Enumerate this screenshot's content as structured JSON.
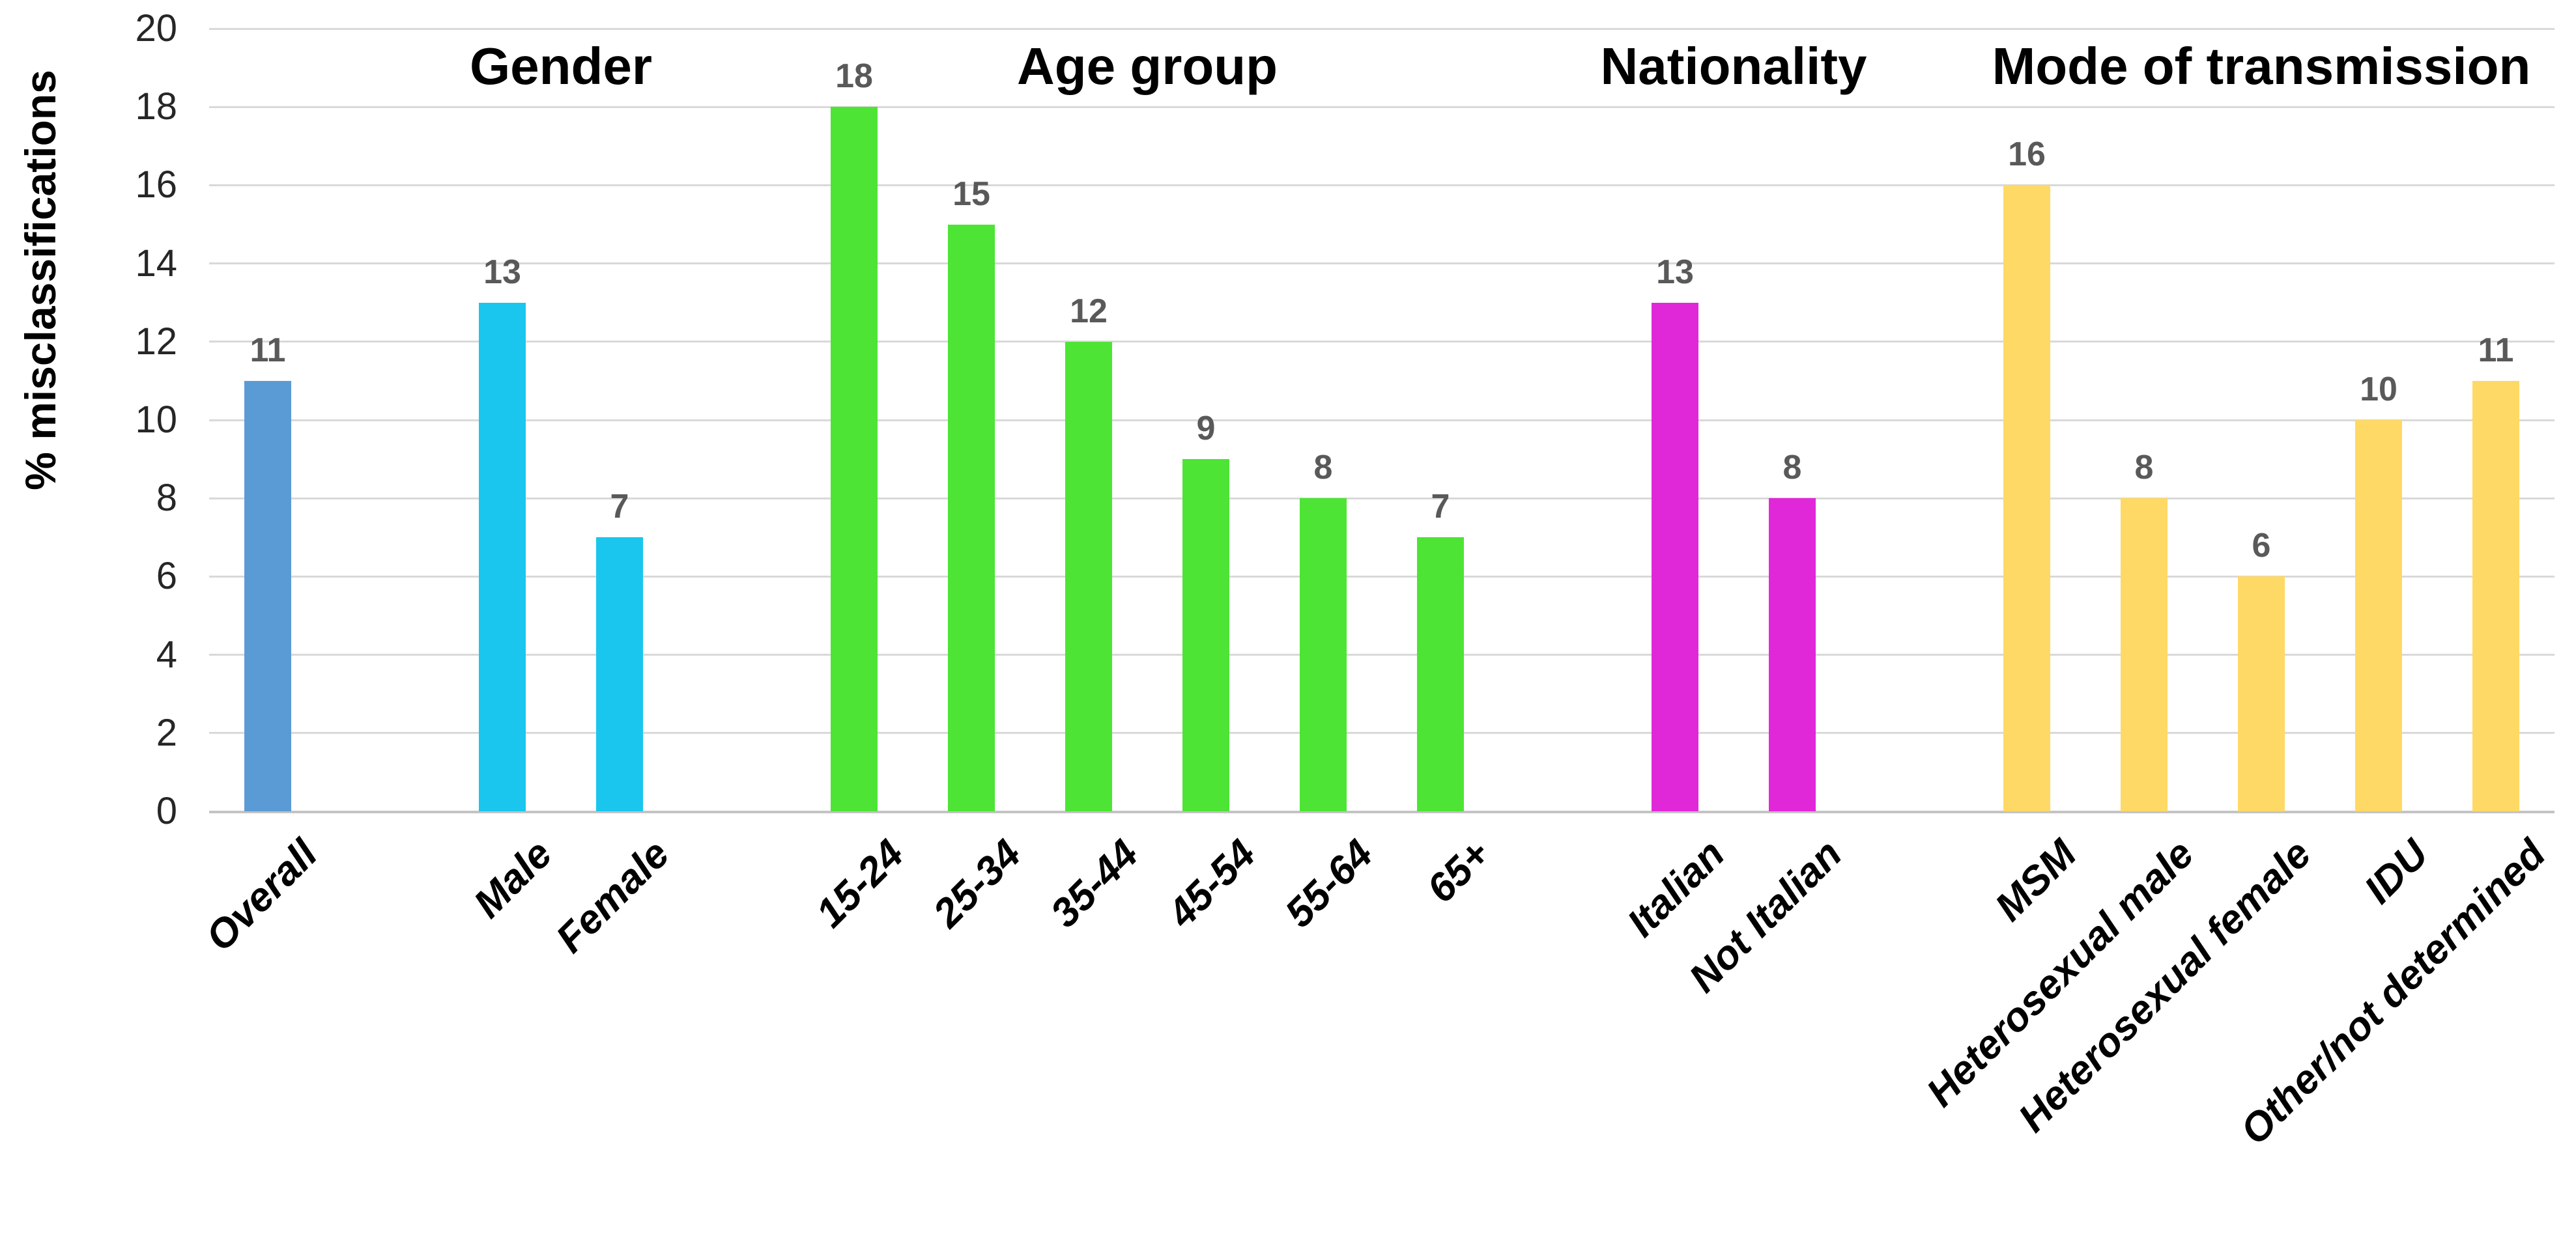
{
  "chart_data": {
    "type": "bar",
    "title": "",
    "ylabel": "% misclassifications",
    "xlabel": "",
    "ylim": [
      0,
      20
    ],
    "ytick_step": 2,
    "yticks": [
      20,
      18,
      16,
      14,
      12,
      10,
      8,
      6,
      4,
      2,
      0
    ],
    "grid": true,
    "legend": false,
    "bar_value_labels": true,
    "groups": [
      {
        "title": "",
        "color": "#5B9BD5",
        "categories": [
          "Overall"
        ],
        "values": [
          11
        ]
      },
      {
        "title": "Gender",
        "color": "#1BC6EE",
        "categories": [
          "Male",
          "Female"
        ],
        "values": [
          13,
          7
        ]
      },
      {
        "title": "Age group",
        "color": "#4DE435",
        "categories": [
          "15-24",
          "25-34",
          "35-44",
          "45-54",
          "55-64",
          "65+"
        ],
        "values": [
          18,
          15,
          12,
          9,
          8,
          7
        ]
      },
      {
        "title": "Nationality",
        "color": "#E128D9",
        "categories": [
          "Italian",
          "Not Italian"
        ],
        "values": [
          13,
          8
        ]
      },
      {
        "title": "Mode of transmission",
        "color": "#FFD965",
        "categories": [
          "MSM",
          "Heterosexual male",
          "Heterosexual female",
          "IDU",
          "Other/not determined"
        ],
        "values": [
          16,
          8,
          6,
          10,
          11
        ]
      }
    ],
    "colors": {
      "grid": "#D9D9D9",
      "axis_line": "#C4C4C4",
      "value_label": "#595959",
      "tick_label": "#262626",
      "text": "#000000"
    }
  }
}
